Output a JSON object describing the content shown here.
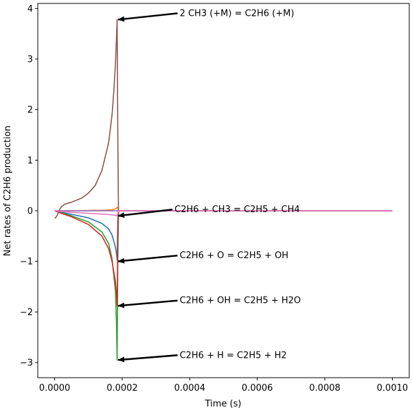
{
  "chart_data": {
    "type": "line",
    "xlabel": "Time (s)",
    "ylabel": "Net rates of C2H6 production",
    "xlim": [
      -5e-05,
      0.00105
    ],
    "ylim": [
      -3.3,
      4.1
    ],
    "x_ticks": [
      0.0,
      0.0002,
      0.0004,
      0.0006,
      0.0008,
      0.001
    ],
    "x_tick_labels": [
      "0.0000",
      "0.0002",
      "0.0004",
      "0.0006",
      "0.0008",
      "0.0010"
    ],
    "y_ticks": [
      -3,
      -2,
      -1,
      0,
      1,
      2,
      3,
      4
    ],
    "y_tick_labels": [
      "−3",
      "−2",
      "−1",
      "0",
      "1",
      "2",
      "3",
      "4"
    ],
    "grid": false,
    "series": [
      {
        "color": "#1f77b4",
        "x": [
          0,
          2e-05,
          5e-05,
          0.0001,
          0.00014,
          0.00016,
          0.00017,
          0.00018,
          0.000183,
          0.000185,
          0.000187,
          0.000189,
          0.0002,
          0.00025,
          0.001
        ],
        "y": [
          0,
          -0.03,
          -0.07,
          -0.14,
          -0.25,
          -0.36,
          -0.48,
          -0.72,
          -0.85,
          -0.97,
          -0.2,
          0.0,
          0.0,
          0.0,
          0.0
        ]
      },
      {
        "color": "#ff7f0e",
        "x": [
          0,
          5e-05,
          0.0001,
          0.00015,
          0.00017,
          0.00018,
          0.000185,
          0.000187,
          0.000189,
          0.0002,
          0.001
        ],
        "y": [
          0,
          0.0,
          0.005,
          0.01,
          0.02,
          0.04,
          0.06,
          0.07,
          0.0,
          0.0,
          0.0
        ]
      },
      {
        "color": "#2ca02c",
        "x": [
          0,
          2e-05,
          5e-05,
          0.0001,
          0.00014,
          0.00016,
          0.00017,
          0.00018,
          0.000183,
          0.000185,
          0.000187,
          0.000189,
          0.0002,
          0.00025,
          0.001
        ],
        "y": [
          0,
          -0.04,
          -0.1,
          -0.22,
          -0.42,
          -0.65,
          -0.95,
          -1.6,
          -2.2,
          -2.95,
          -1.0,
          0.0,
          0.0,
          0.0,
          0.0
        ]
      },
      {
        "color": "#d62728",
        "x": [
          0,
          2e-05,
          5e-05,
          0.0001,
          0.00014,
          0.00016,
          0.00017,
          0.00018,
          0.000183,
          0.000185,
          0.000187,
          0.000189,
          0.0002,
          0.00025,
          0.001
        ],
        "y": [
          0,
          -0.05,
          -0.12,
          -0.27,
          -0.5,
          -0.75,
          -1.0,
          -1.4,
          -1.65,
          -1.88,
          -0.5,
          0.0,
          0.0,
          0.0,
          0.0
        ]
      },
      {
        "color": "#9467bd",
        "x": [
          0,
          0.0001,
          0.0002,
          0.0003,
          0.001
        ],
        "y": [
          0,
          0.0,
          0.0,
          0.0,
          0.0
        ]
      },
      {
        "color": "#8c564b",
        "x": [
          0,
          5e-06,
          1e-05,
          1.5e-05,
          2e-05,
          3e-05,
          5e-05,
          8e-05,
          0.0001,
          0.00012,
          0.00014,
          0.00016,
          0.00017,
          0.000175,
          0.00018,
          0.000183,
          0.000185,
          0.000187,
          0.000189,
          0.0002,
          0.00025,
          0.001
        ],
        "y": [
          -0.15,
          -0.12,
          -0.05,
          0.03,
          0.08,
          0.13,
          0.17,
          0.25,
          0.35,
          0.5,
          0.8,
          1.35,
          1.9,
          2.35,
          2.9,
          3.4,
          3.78,
          1.5,
          0.0,
          0.0,
          0.0,
          0.0
        ]
      },
      {
        "color": "#e377c2",
        "x": [
          0,
          5e-05,
          0.0001,
          0.00015,
          0.00017,
          0.00018,
          0.000185,
          0.000187,
          0.000189,
          0.0002,
          0.001
        ],
        "y": [
          0,
          -0.03,
          -0.05,
          -0.07,
          -0.08,
          -0.09,
          -0.1,
          -0.05,
          0.0,
          0.0,
          0.0
        ]
      }
    ],
    "annotations": [
      {
        "text": "2 CH3 (+M) = C2H6 (+M)",
        "xytext": [
          0.00037,
          3.85
        ],
        "xy": [
          0.000188,
          3.78
        ]
      },
      {
        "text": "C2H6 + CH3 = C2H5 + CH4",
        "xytext": [
          0.000355,
          -0.03
        ],
        "xy": [
          0.000188,
          -0.1
        ]
      },
      {
        "text": "C2H6 + O = C2H5 + OH",
        "xytext": [
          0.00037,
          -0.94
        ],
        "xy": [
          0.000188,
          -1.0
        ]
      },
      {
        "text": "C2H6 + OH = C2H5 + H2O",
        "xytext": [
          0.00037,
          -1.83
        ],
        "xy": [
          0.000188,
          -1.88
        ]
      },
      {
        "text": "C2H6 + H = C2H5 + H2",
        "xytext": [
          0.00037,
          -2.91
        ],
        "xy": [
          0.000188,
          -2.95
        ]
      }
    ]
  }
}
